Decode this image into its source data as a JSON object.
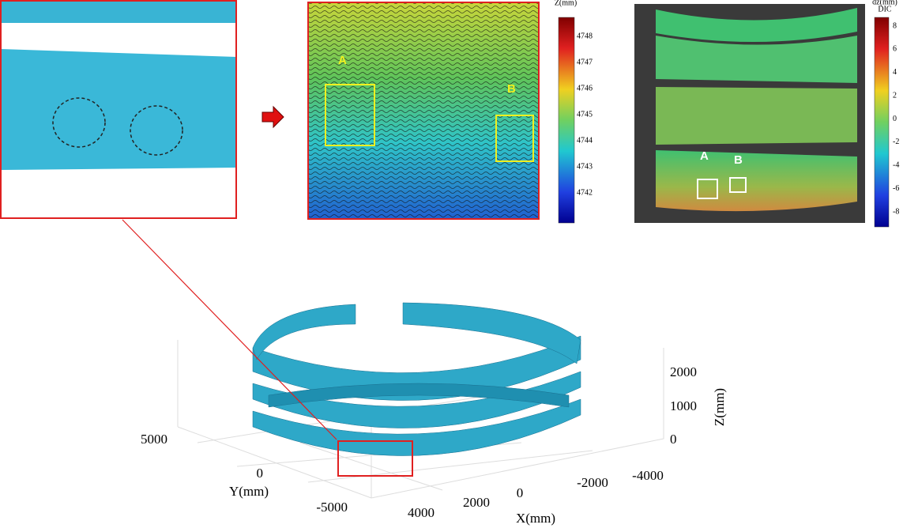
{
  "contour_panel": {
    "labels": [
      "A",
      "B"
    ],
    "colorbar": {
      "title": "Z(mm)",
      "ticks": [
        4748,
        4747,
        4746,
        4745,
        4744,
        4743,
        4742
      ]
    }
  },
  "dic_panel": {
    "labels": [
      "A",
      "B"
    ],
    "colorbar": {
      "title": "dz(mm)",
      "subtitle": "DIC",
      "ticks": [
        8,
        6,
        4,
        2,
        0,
        -2,
        -4,
        -6,
        -8
      ]
    }
  },
  "plot3d": {
    "x_label": "X(mm)",
    "y_label": "Y(mm)",
    "z_label": "Z(mm)",
    "xticks": [
      4000,
      2000,
      0,
      -2000,
      -4000
    ],
    "yticks": [
      5000,
      0,
      -5000
    ],
    "zticks": [
      2000,
      1000,
      0
    ]
  }
}
